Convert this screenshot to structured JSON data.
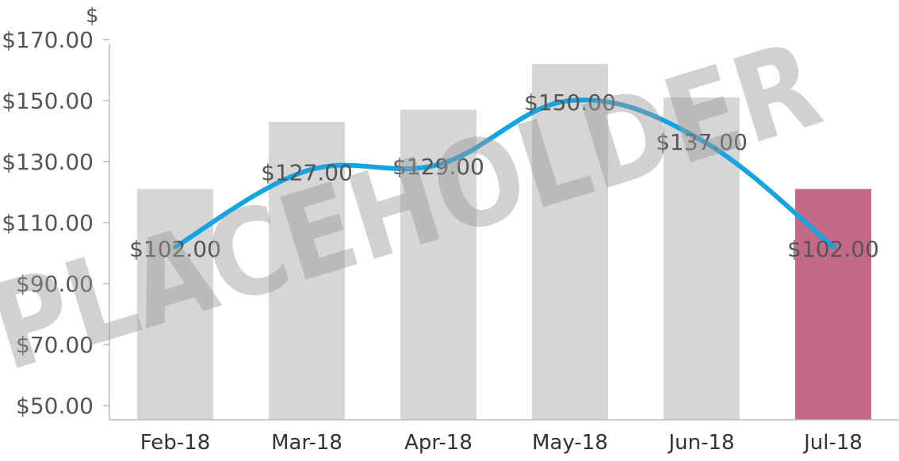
{
  "chart_data": {
    "type": "bar",
    "unit_label": "$",
    "categories": [
      "Feb-18",
      "Mar-18",
      "Apr-18",
      "May-18",
      "Jun-18",
      "Jul-18"
    ],
    "series": [
      {
        "type": "bar",
        "values": [
          121,
          143,
          147,
          162,
          151,
          121
        ],
        "color": "#d6d6d6",
        "highlight_index": 5,
        "highlight_color": "#c36b86"
      },
      {
        "type": "line",
        "values": [
          102,
          127,
          129,
          150,
          137,
          102
        ],
        "data_labels": [
          "$102.00",
          "$127.00",
          "$129.00",
          "$150.00",
          "$137.00",
          "$102.00"
        ],
        "color": "#16a4e0"
      }
    ],
    "yticks": [
      50,
      70,
      90,
      110,
      130,
      150,
      170
    ],
    "ytick_labels": [
      "$50.00",
      "$70.00",
      "$90.00",
      "$110.00",
      "$130.00",
      "$150.00",
      "$170.00"
    ],
    "ylim": [
      45,
      174
    ],
    "grid": false,
    "watermark": "PLACEHOLDER"
  }
}
